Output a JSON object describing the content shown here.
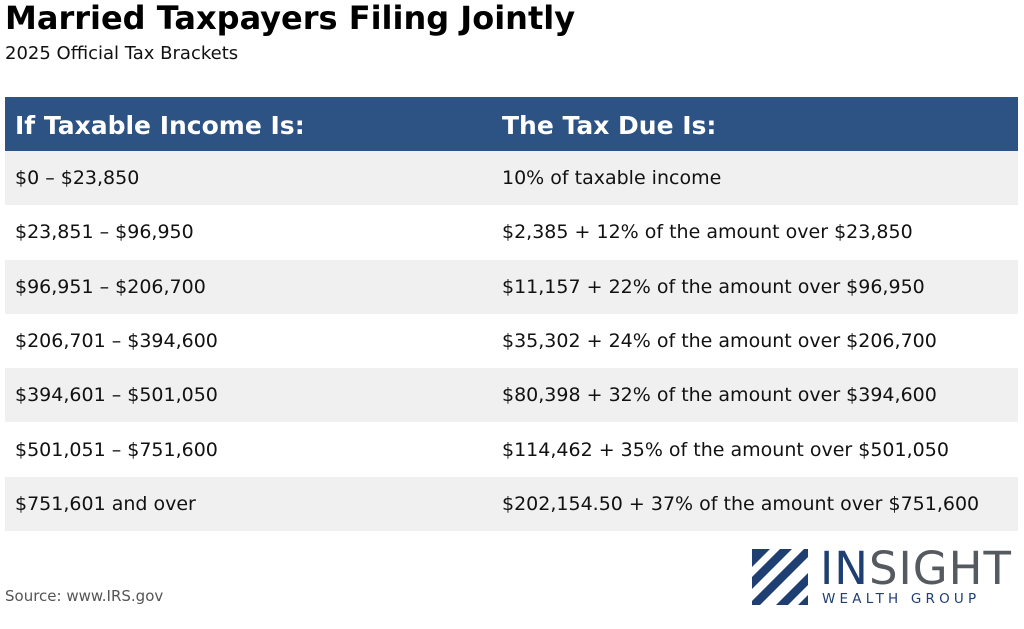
{
  "header": {
    "title": "Married Taxpayers Filing Jointly",
    "subtitle": "2025 Official Tax Brackets"
  },
  "table": {
    "columns": [
      "If Taxable Income Is:",
      "The Tax Due Is:"
    ],
    "rows": [
      [
        "$0 – $23,850",
        "10% of taxable income"
      ],
      [
        "$23,851 – $96,950",
        "$2,385 + 12% of the amount over $23,850"
      ],
      [
        "$96,951 – $206,700",
        "$11,157 + 22% of the amount over $96,950"
      ],
      [
        "$206,701 – $394,600",
        "$35,302 + 24% of the amount over $206,700"
      ],
      [
        "$394,601 – $501,050",
        "$80,398 + 32% of the amount over $394,600"
      ],
      [
        "$501,051 – $751,600",
        "$114,462 + 35% of the amount over $501,050"
      ],
      [
        "$751,601 and over",
        "$202,154.50 + 37% of the amount over $751,600"
      ]
    ]
  },
  "footer": {
    "source": "Source: www.IRS.gov"
  },
  "logo": {
    "name_part1": "IN",
    "name_part2": "SIGHT",
    "tagline": "WEALTH GROUP",
    "icon": "diagonal-stripes-icon"
  },
  "colors": {
    "header_bg": "#2d5284",
    "row_alt_bg": "#f0f0f0",
    "logo_navy": "#1f3f73",
    "logo_gray": "#555a60"
  }
}
